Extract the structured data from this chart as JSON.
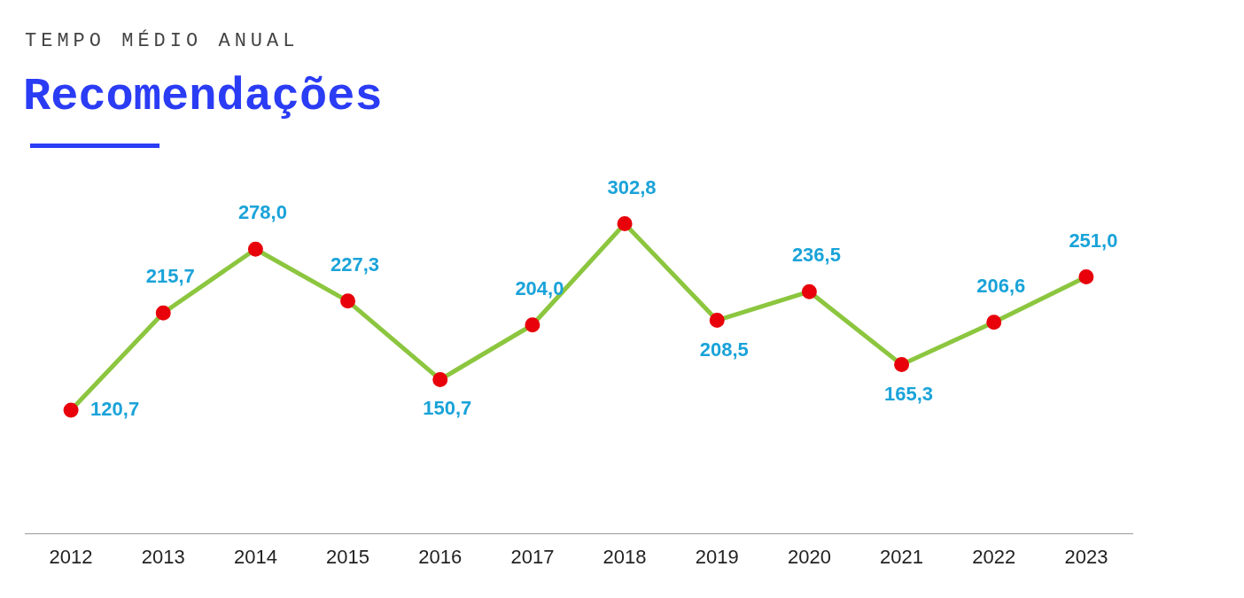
{
  "chart_data": {
    "type": "line",
    "subtitle": "TEMPO MÉDIO ANUAL",
    "title": "Recomendações",
    "categories": [
      "2012",
      "2013",
      "2014",
      "2015",
      "2016",
      "2017",
      "2018",
      "2019",
      "2020",
      "2021",
      "2022",
      "2023"
    ],
    "series": [
      {
        "color": "#8cc63f",
        "values": [
          120.7,
          215.7,
          278.0,
          227.3,
          150.7,
          204.0,
          302.8,
          208.5,
          236.5,
          165.3,
          206.6,
          251.0
        ],
        "value_labels": [
          "120,7",
          "215,7",
          "278,0",
          "227,3",
          "150,7",
          "204,0",
          "302,8",
          "208,5",
          "236,5",
          "165,3",
          "206,6",
          "251,0"
        ]
      }
    ],
    "marker": "circle",
    "line_style": "solid",
    "tick_labels": "x"
  }
}
